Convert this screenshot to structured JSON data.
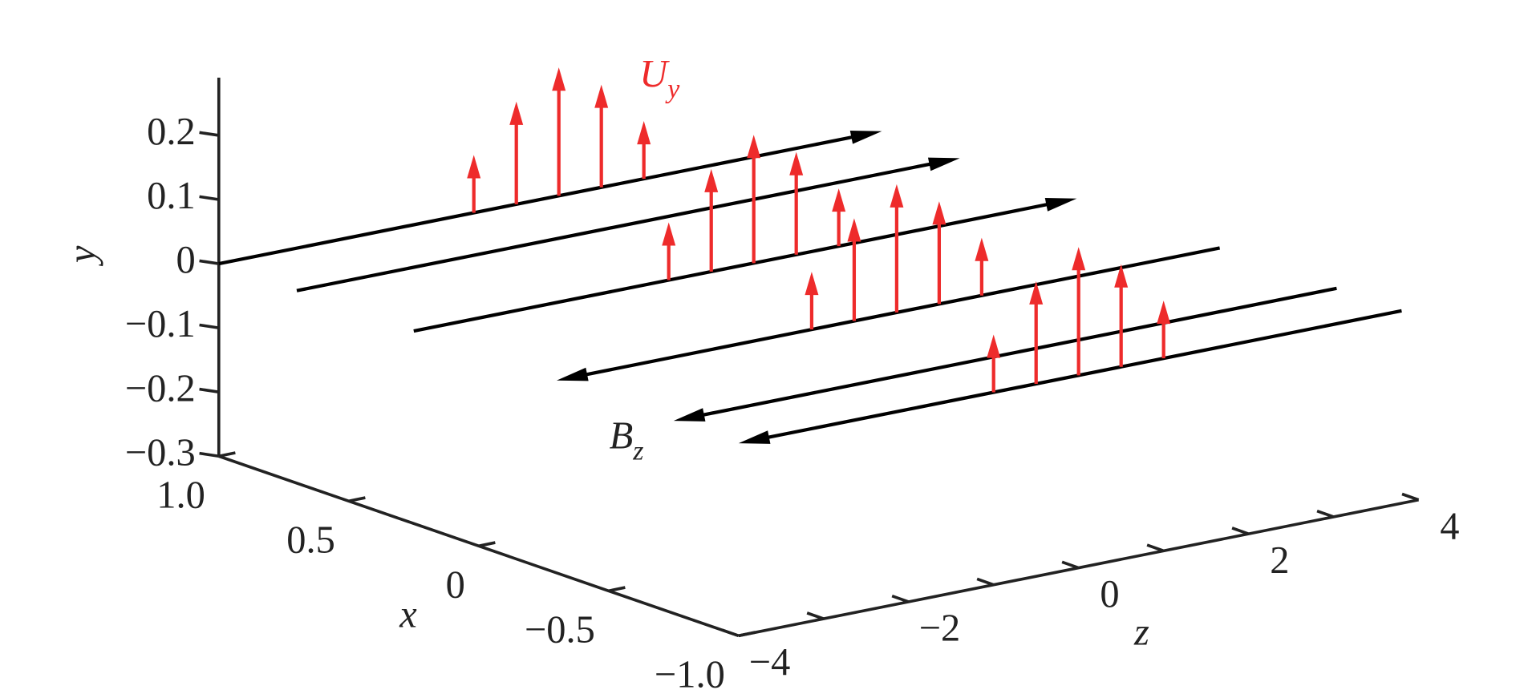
{
  "chart_data": {
    "type": "quiver3d",
    "xlabel": "x",
    "ylabel": "y",
    "zlabel": "z",
    "xlim": [
      -1,
      1
    ],
    "ylim": [
      -0.3,
      0.29
    ],
    "zlim": [
      -4,
      4
    ],
    "xticks": [
      {
        "value": 1,
        "label": "1.0"
      },
      0.5,
      0,
      {
        "value": -0.5,
        "label": "−0.5"
      },
      {
        "value": -1,
        "label": "−1.0"
      }
    ],
    "yticks": [
      {
        "value": -0.3,
        "label": "−0.3"
      },
      {
        "value": -0.2,
        "label": "−0.2"
      },
      {
        "value": -0.1,
        "label": "−0.1"
      },
      0,
      0.1,
      0.2
    ],
    "zticks": [
      {
        "value": -4,
        "label": "−4"
      },
      {
        "value": -2,
        "label": "−2"
      },
      0,
      2,
      4
    ],
    "zminorticks": [
      -3,
      -1,
      1,
      3
    ],
    "field_lines": {
      "name": {
        "text": "B",
        "subscript": "z"
      },
      "color": "#000000",
      "y": 0,
      "zrange": [
        -4,
        3.8
      ],
      "x": [
        1,
        0.7,
        0.25,
        -0.3,
        -0.75,
        -1.0
      ],
      "direction": [
        1,
        1,
        1,
        -1,
        -1,
        -1
      ]
    },
    "arrows": {
      "name": {
        "text": "U",
        "subscript": "y"
      },
      "color": "#ee2b2b",
      "x": [
        1,
        0.25,
        -0.3,
        -1.0
      ],
      "z": [
        -1,
        -0.5,
        0,
        0.5,
        1
      ],
      "values": [
        [
          0.09,
          0.16,
          0.2,
          0.16,
          0.09
        ],
        [
          0.09,
          0.16,
          0.2,
          0.16,
          0.09
        ],
        [
          0.09,
          0.16,
          0.2,
          0.16,
          0.09
        ],
        [
          0.09,
          0.16,
          0.2,
          0.16,
          0.09
        ]
      ]
    }
  }
}
